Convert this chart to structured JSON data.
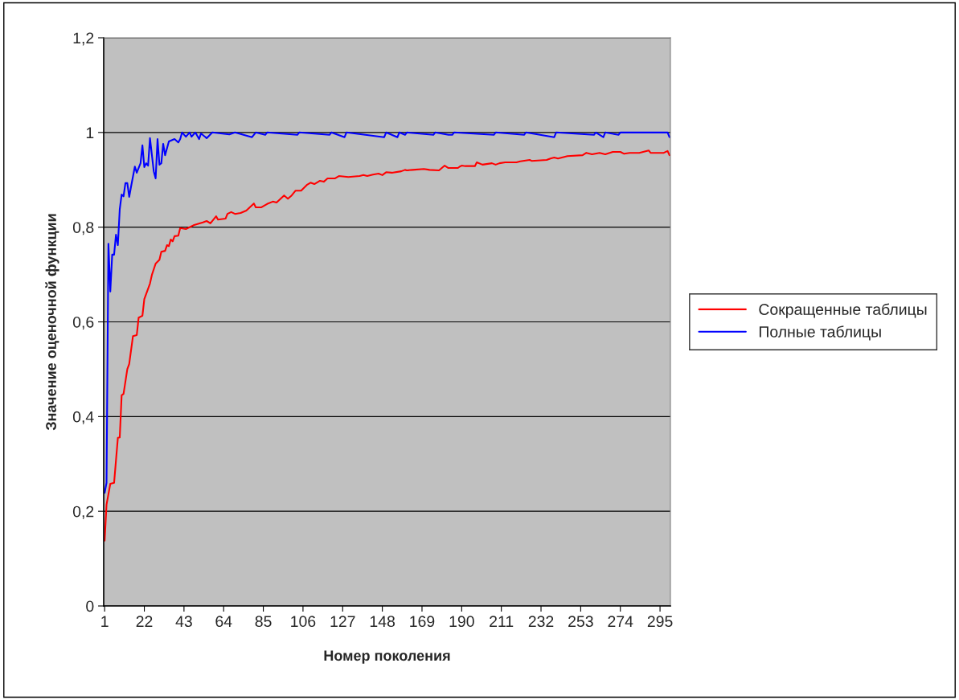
{
  "chart_data": {
    "type": "line",
    "xlabel": "Номер поколения",
    "ylabel": "Значение оценочной функции",
    "xlim": [
      0.5,
      300.5
    ],
    "xticks": [
      1,
      22,
      43,
      64,
      85,
      106,
      127,
      148,
      169,
      190,
      211,
      232,
      253,
      274,
      295
    ],
    "ylim": [
      0,
      1.2
    ],
    "yticks": [
      0,
      {
        "value": 0.2,
        "label": "0,2"
      },
      {
        "value": 0.4,
        "label": "0,4"
      },
      {
        "value": 0.6,
        "label": "0,6"
      },
      {
        "value": 0.8,
        "label": "0,8"
      },
      1,
      {
        "value": 1.2,
        "label": "1,2"
      }
    ],
    "grid": "y",
    "legend": "right",
    "marker": "none",
    "line_style": "solid",
    "series": [
      {
        "name": "Сокращенные таблицы",
        "color": "#ff0000",
        "x": [
          1,
          2,
          4,
          6,
          8,
          9,
          10,
          11,
          13,
          14,
          16,
          18,
          19,
          21,
          22,
          25,
          26,
          28,
          30,
          31,
          33,
          34,
          35,
          36,
          37,
          38,
          40,
          41,
          44,
          48,
          53,
          55,
          57,
          60,
          61,
          65,
          66,
          68,
          70,
          73,
          76,
          80,
          81,
          84,
          87,
          90,
          92,
          96,
          98,
          100,
          102,
          105,
          108,
          110,
          112,
          115,
          117,
          119,
          123,
          125,
          130,
          136,
          138,
          140,
          143,
          146,
          148,
          150,
          153,
          158,
          160,
          161,
          164,
          170,
          173,
          178,
          181,
          183,
          188,
          189,
          190,
          192,
          197,
          198,
          201,
          206,
          208,
          210,
          213,
          219,
          221,
          226,
          227,
          235,
          237,
          239,
          241,
          246,
          254,
          256,
          259,
          263,
          266,
          270,
          274,
          276,
          279,
          284,
          289,
          290,
          297,
          299,
          300
        ],
        "values": [
          0.138,
          0.214,
          0.258,
          0.26,
          0.355,
          0.356,
          0.445,
          0.448,
          0.5,
          0.511,
          0.57,
          0.572,
          0.609,
          0.613,
          0.648,
          0.681,
          0.699,
          0.723,
          0.731,
          0.748,
          0.75,
          0.762,
          0.76,
          0.774,
          0.77,
          0.781,
          0.782,
          0.798,
          0.796,
          0.804,
          0.81,
          0.813,
          0.808,
          0.823,
          0.816,
          0.818,
          0.828,
          0.832,
          0.828,
          0.83,
          0.835,
          0.85,
          0.842,
          0.842,
          0.849,
          0.854,
          0.852,
          0.867,
          0.86,
          0.867,
          0.877,
          0.877,
          0.889,
          0.894,
          0.891,
          0.898,
          0.896,
          0.903,
          0.903,
          0.908,
          0.906,
          0.908,
          0.91,
          0.908,
          0.911,
          0.913,
          0.91,
          0.916,
          0.915,
          0.918,
          0.921,
          0.92,
          0.921,
          0.923,
          0.921,
          0.92,
          0.93,
          0.925,
          0.925,
          0.928,
          0.93,
          0.929,
          0.929,
          0.937,
          0.932,
          0.935,
          0.932,
          0.935,
          0.937,
          0.937,
          0.939,
          0.942,
          0.94,
          0.942,
          0.945,
          0.947,
          0.945,
          0.95,
          0.952,
          0.957,
          0.954,
          0.957,
          0.954,
          0.959,
          0.959,
          0.955,
          0.957,
          0.957,
          0.962,
          0.957,
          0.957,
          0.961,
          0.952
        ]
      },
      {
        "name": "Полные таблицы",
        "color": "#0000ff",
        "x": [
          1,
          2,
          3,
          4,
          5,
          6,
          7,
          8,
          9,
          10,
          11,
          12,
          13,
          14,
          15,
          17,
          18,
          20,
          21,
          22,
          23,
          24,
          25,
          27,
          28,
          29,
          30,
          31,
          32,
          33,
          35,
          38,
          40,
          41,
          42,
          44,
          46,
          47,
          49,
          51,
          52,
          55,
          58,
          67,
          70,
          79,
          81,
          86,
          87,
          103,
          104,
          120,
          121,
          128,
          129,
          149,
          150,
          156,
          157,
          160,
          161,
          175,
          176,
          183,
          185,
          186,
          207,
          208,
          223,
          224,
          239,
          240,
          260,
          261,
          265,
          266,
          273,
          274,
          299,
          300
        ],
        "values": [
          0.239,
          0.26,
          0.765,
          0.664,
          0.742,
          0.742,
          0.784,
          0.762,
          0.838,
          0.869,
          0.865,
          0.893,
          0.893,
          0.864,
          0.886,
          0.928,
          0.915,
          0.935,
          0.973,
          0.927,
          0.935,
          0.93,
          0.988,
          0.918,
          0.903,
          0.986,
          0.932,
          0.935,
          0.976,
          0.952,
          0.981,
          0.986,
          0.979,
          0.986,
          1.0,
          0.991,
          1.0,
          0.991,
          1.0,
          0.986,
          0.998,
          0.988,
          1.0,
          0.996,
          1.0,
          0.99,
          1.0,
          0.995,
          1.0,
          0.995,
          1.0,
          0.995,
          1.0,
          0.99,
          1.0,
          0.99,
          1.0,
          0.99,
          1.0,
          0.995,
          1.0,
          0.995,
          1.0,
          0.995,
          0.995,
          1.0,
          0.995,
          1.0,
          0.995,
          1.0,
          0.99,
          1.0,
          0.995,
          1.0,
          0.99,
          1.0,
          0.995,
          1.0,
          1.0,
          0.99
        ]
      }
    ]
  }
}
